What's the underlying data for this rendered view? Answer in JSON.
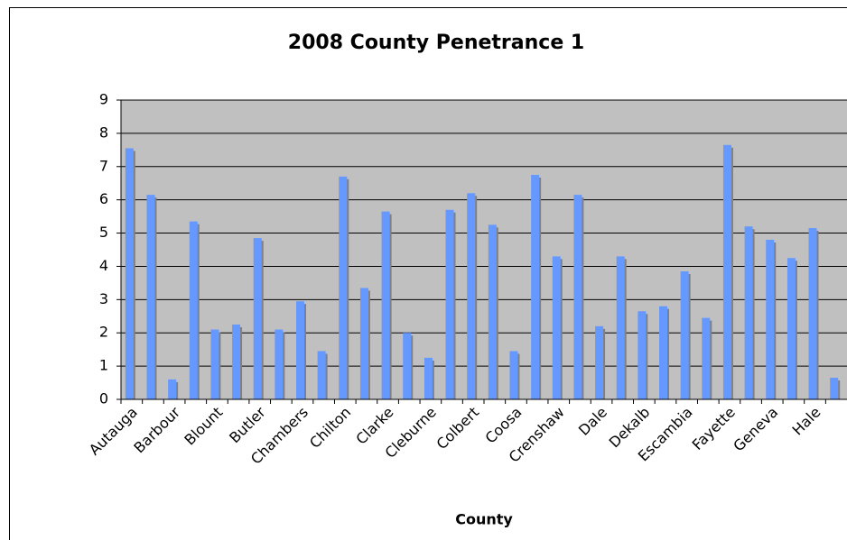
{
  "chart_data": {
    "type": "bar",
    "title": "2008 County Penetrance 1",
    "x_label": "County",
    "categories": [
      "Autauga",
      null,
      "Barbour",
      null,
      "Blount",
      null,
      "Butler",
      null,
      "Chambers",
      null,
      "Chilton",
      null,
      "Clarke",
      null,
      "Cleburne",
      null,
      "Colbert",
      null,
      "Coosa",
      null,
      "Crenshaw",
      null,
      "Dale",
      null,
      "Dekalb",
      null,
      "Escambia",
      null,
      "Fayette",
      null,
      "Geneva",
      null,
      "Hale",
      null
    ],
    "values": [
      7.55,
      6.15,
      0.6,
      5.35,
      2.1,
      2.25,
      4.85,
      2.1,
      2.95,
      1.45,
      6.7,
      3.35,
      5.65,
      2.0,
      1.25,
      5.7,
      6.2,
      5.25,
      1.45,
      6.75,
      4.3,
      6.15,
      2.2,
      4.3,
      2.65,
      2.8,
      3.85,
      2.45,
      7.65,
      5.2,
      4.8,
      4.25,
      5.15,
      0.65
    ],
    "color": "#6699ff",
    "ylim": [
      0,
      9
    ],
    "yticks": [
      0,
      1,
      2,
      3,
      4,
      5,
      6,
      7,
      8,
      9
    ],
    "grid": true
  }
}
